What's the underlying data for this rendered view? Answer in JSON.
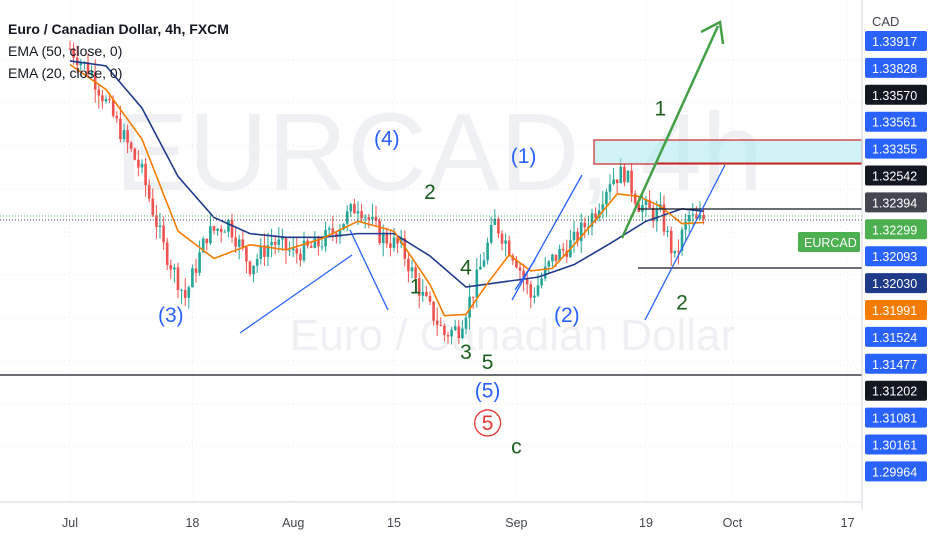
{
  "chart_data": {
    "type": "candlestick",
    "title": "Euro / Canadian Dollar, 4h, FXCM",
    "indicators": [
      "EMA (50, close, 0)",
      "EMA (20, close, 0)"
    ],
    "watermark": {
      "symbol": "EURCAD, 4h",
      "name": "Euro / Canadian Dollar"
    },
    "currency": "CAD",
    "symbol": "EURCAD",
    "x_ticks": [
      {
        "label": "Jul",
        "day": 0
      },
      {
        "label": "18",
        "day": 17
      },
      {
        "label": "Aug",
        "day": 31
      },
      {
        "label": "15",
        "day": 45
      },
      {
        "label": "Sep",
        "day": 62
      },
      {
        "label": "19",
        "day": 80
      },
      {
        "label": "Oct",
        "day": 92
      },
      {
        "label": "17",
        "day": 108
      }
    ],
    "price_labels": [
      {
        "value": "1.33917",
        "color": "#2962ff"
      },
      {
        "value": "1.33828",
        "color": "#2962ff"
      },
      {
        "value": "1.33570",
        "color": "#131722"
      },
      {
        "value": "1.33561",
        "color": "#2962ff"
      },
      {
        "value": "1.33355",
        "color": "#2962ff"
      },
      {
        "value": "1.32542",
        "color": "#131722"
      },
      {
        "value": "1.32394",
        "color": "#434651"
      },
      {
        "value": "1.32299",
        "color": "#4caf50"
      },
      {
        "value": "1.32093",
        "color": "#2962ff"
      },
      {
        "value": "1.32030",
        "color": "#1e3a8a"
      },
      {
        "value": "1.31991",
        "color": "#f57c00"
      },
      {
        "value": "1.31524",
        "color": "#2962ff"
      },
      {
        "value": "1.31477",
        "color": "#2962ff"
      },
      {
        "value": "1.31202",
        "color": "#131722"
      },
      {
        "value": "1.31081",
        "color": "#2962ff"
      },
      {
        "value": "1.30161",
        "color": "#2962ff"
      },
      {
        "value": "1.29964",
        "color": "#2962ff"
      }
    ],
    "price_series": {
      "day": [
        0,
        3,
        6,
        10,
        13,
        16,
        19,
        22,
        25,
        28,
        31,
        34,
        37,
        40,
        43,
        46,
        49,
        52,
        54,
        56,
        59,
        62,
        64,
        67,
        70,
        73,
        75,
        77,
        79,
        81,
        82,
        84,
        85,
        86,
        87,
        88
      ],
      "close": [
        1.3365,
        1.3345,
        1.331,
        1.3265,
        1.3205,
        1.3165,
        1.3215,
        1.3225,
        1.319,
        1.321,
        1.32,
        1.3205,
        1.322,
        1.324,
        1.3215,
        1.3205,
        1.3165,
        1.3135,
        1.314,
        1.317,
        1.3225,
        1.3195,
        1.3165,
        1.3195,
        1.321,
        1.3235,
        1.326,
        1.3265,
        1.324,
        1.3232,
        1.3232,
        1.3195,
        1.3215,
        1.323,
        1.3225,
        1.3228
      ]
    },
    "ema_20": {
      "day": [
        0,
        5,
        10,
        15,
        20,
        25,
        30,
        35,
        40,
        45,
        50,
        52,
        55,
        58,
        61,
        64,
        67,
        70,
        73,
        76,
        79,
        82,
        85,
        88
      ],
      "value": [
        1.3352,
        1.3332,
        1.3292,
        1.3218,
        1.3196,
        1.3207,
        1.3203,
        1.3212,
        1.3226,
        1.3218,
        1.3175,
        1.315,
        1.3151,
        1.3176,
        1.3199,
        1.3186,
        1.3188,
        1.3207,
        1.3227,
        1.3248,
        1.3246,
        1.3238,
        1.3224,
        1.3225
      ]
    },
    "ema_50": {
      "day": [
        0,
        5,
        10,
        15,
        20,
        25,
        30,
        35,
        40,
        45,
        50,
        55,
        60,
        65,
        70,
        75,
        80,
        85,
        88
      ],
      "value": [
        1.3355,
        1.3351,
        1.3317,
        1.3262,
        1.3229,
        1.3216,
        1.3213,
        1.3213,
        1.3216,
        1.3216,
        1.3198,
        1.3173,
        1.3177,
        1.3181,
        1.3191,
        1.3208,
        1.3226,
        1.3236,
        1.3234
      ]
    },
    "wave_labels": [
      {
        "text": "(4)",
        "day": 44,
        "price": 1.3287,
        "color": "#2962ff"
      },
      {
        "text": "2",
        "day": 50,
        "price": 1.3244,
        "color": "#1b5e20"
      },
      {
        "text": "(1)",
        "day": 63,
        "price": 1.3273,
        "color": "#2962ff"
      },
      {
        "text": "1",
        "day": 48,
        "price": 1.3168,
        "color": "#1b5e20"
      },
      {
        "text": "4",
        "day": 55,
        "price": 1.3183,
        "color": "#1b5e20"
      },
      {
        "text": "(3)",
        "day": 14,
        "price": 1.3145,
        "color": "#2962ff"
      },
      {
        "text": "(2)",
        "day": 69,
        "price": 1.3145,
        "color": "#2962ff"
      },
      {
        "text": "1",
        "day": 82,
        "price": 1.3311,
        "color": "#1b5e20"
      },
      {
        "text": "2",
        "day": 85,
        "price": 1.3155,
        "color": "#1b5e20"
      },
      {
        "text": "3",
        "day": 55,
        "price": 1.3115,
        "color": "#1b5e20"
      },
      {
        "text": "5",
        "day": 58,
        "price": 1.3107,
        "color": "#1b5e20"
      },
      {
        "text": "(5)",
        "day": 58,
        "price": 1.3084,
        "color": "#2962ff"
      },
      {
        "text": "5",
        "day": 58,
        "price": 1.3058,
        "color": "#e53935"
      },
      {
        "text": "c",
        "day": 62,
        "price": 1.3039,
        "color": "#1b5e20"
      }
    ]
  }
}
